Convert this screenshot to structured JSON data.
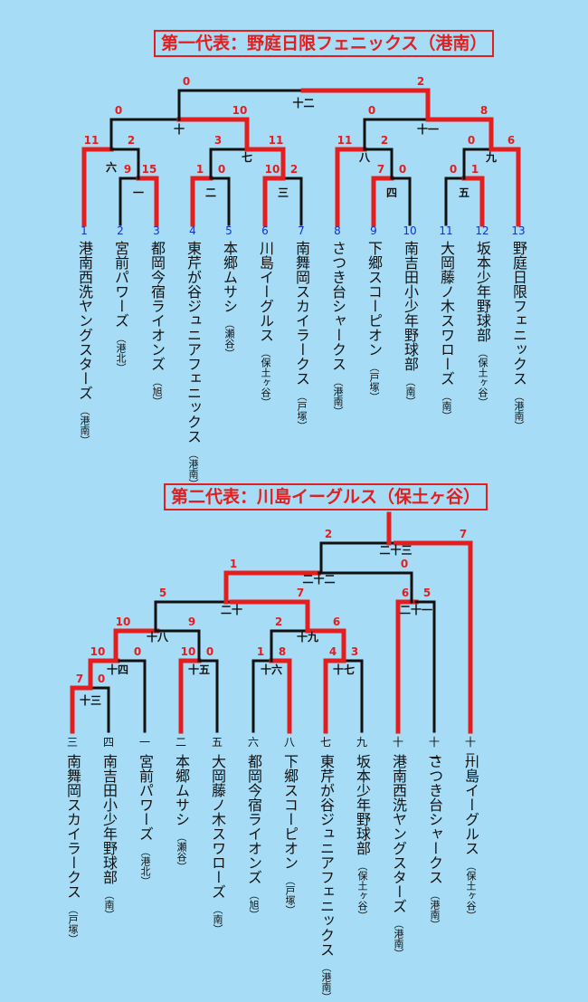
{
  "bracket1": {
    "banner": "第一代表：野庭日限フェニックス（港南）",
    "teams": [
      {
        "seed": "1",
        "name": "港南西洗ヤングスターズ",
        "ward": "（港南）"
      },
      {
        "seed": "2",
        "name": "宮前パワーズ",
        "ward": "（港北）"
      },
      {
        "seed": "3",
        "name": "都岡今宿ライオンズ",
        "ward": "（旭）"
      },
      {
        "seed": "4",
        "name": "東芹が谷ジュニアフェニックス",
        "ward": "（港南）"
      },
      {
        "seed": "5",
        "name": "本郷ムサシ",
        "ward": "（瀬谷）"
      },
      {
        "seed": "6",
        "name": "川島イーグルス",
        "ward": "（保土ヶ谷）"
      },
      {
        "seed": "7",
        "name": "南舞岡スカイラークス",
        "ward": "（戸塚）"
      },
      {
        "seed": "8",
        "name": "さつき台シャークス",
        "ward": "（港南）"
      },
      {
        "seed": "9",
        "name": "下郷スコーピオン",
        "ward": "（戸塚）"
      },
      {
        "seed": "10",
        "name": "南吉田小少年野球部",
        "ward": "（南）"
      },
      {
        "seed": "11",
        "name": "大岡藤ノ木スワローズ",
        "ward": "（南）"
      },
      {
        "seed": "12",
        "name": "坂本少年野球部",
        "ward": "（保土ヶ谷）"
      },
      {
        "seed": "13",
        "name": "野庭日限フェニックス",
        "ward": "（港南）"
      }
    ],
    "games": [
      {
        "id": "一",
        "ls": "9",
        "rs": "15"
      },
      {
        "id": "二",
        "ls": "1",
        "rs": "0"
      },
      {
        "id": "三",
        "ls": "10",
        "rs": "2"
      },
      {
        "id": "四",
        "ls": "7",
        "rs": "0"
      },
      {
        "id": "五",
        "ls": "0",
        "rs": "1"
      },
      {
        "id": "六",
        "ls": "11",
        "rs": "2"
      },
      {
        "id": "七",
        "ls": "3",
        "rs": "11"
      },
      {
        "id": "八",
        "ls": "11",
        "rs": "2"
      },
      {
        "id": "九",
        "ls": "0",
        "rs": "6"
      },
      {
        "id": "十",
        "ls": "0",
        "rs": "10"
      },
      {
        "id": "十一",
        "ls": "0",
        "rs": "8"
      },
      {
        "id": "十二",
        "ls": "0",
        "rs": "2"
      }
    ]
  },
  "bracket2": {
    "banner": "第二代表：川島イーグルス（保土ヶ谷）",
    "teams": [
      {
        "seed": "三",
        "name": "南舞岡スカイラークス",
        "ward": "（戸塚）"
      },
      {
        "seed": "四",
        "name": "南吉田小少年野球部",
        "ward": "（南）"
      },
      {
        "seed": "一",
        "name": "宮前パワーズ",
        "ward": "（港北）"
      },
      {
        "seed": "二",
        "name": "本郷ムサシ",
        "ward": "（瀬谷）"
      },
      {
        "seed": "五",
        "name": "大岡藤ノ木スワローズ",
        "ward": "（南）"
      },
      {
        "seed": "六",
        "name": "都岡今宿ライオンズ",
        "ward": "（旭）"
      },
      {
        "seed": "八",
        "name": "下郷スコーピオン",
        "ward": "（戸塚）"
      },
      {
        "seed": "七",
        "name": "東芹が谷ジュニアフェニックス",
        "ward": "（港南）"
      },
      {
        "seed": "九",
        "name": "坂本少年野球部",
        "ward": "（保土ヶ谷）"
      },
      {
        "seed": "十",
        "name": "港南西洗ヤングスターズ",
        "ward": "（港南）"
      },
      {
        "seed": "十一",
        "name": "さつき台シャークス",
        "ward": "（港南）"
      },
      {
        "seed": "十二",
        "name": "川島イーグルス",
        "ward": "（保土ヶ谷）"
      }
    ],
    "games": [
      {
        "id": "十三",
        "ls": "7",
        "rs": "0"
      },
      {
        "id": "十四",
        "ls": "10",
        "rs": "0"
      },
      {
        "id": "十五",
        "ls": "10",
        "rs": "0"
      },
      {
        "id": "十六",
        "ls": "1",
        "rs": "8"
      },
      {
        "id": "十七",
        "ls": "4",
        "rs": "3"
      },
      {
        "id": "十八",
        "ls": "10",
        "rs": "9"
      },
      {
        "id": "十九",
        "ls": "2",
        "rs": "6"
      },
      {
        "id": "二十",
        "ls": "5",
        "rs": "7"
      },
      {
        "id": "二十一",
        "ls": "6",
        "rs": "5"
      },
      {
        "id": "二十二",
        "ls": "1",
        "rs": "0"
      },
      {
        "id": "二十三",
        "ls": "2",
        "rs": "7"
      }
    ]
  },
  "colors": {
    "background": "#a6dcf5",
    "winner_line": "#e41e1e",
    "loser_line": "#111111",
    "score": "#e41e1e",
    "seed_number": "#1133cc"
  }
}
